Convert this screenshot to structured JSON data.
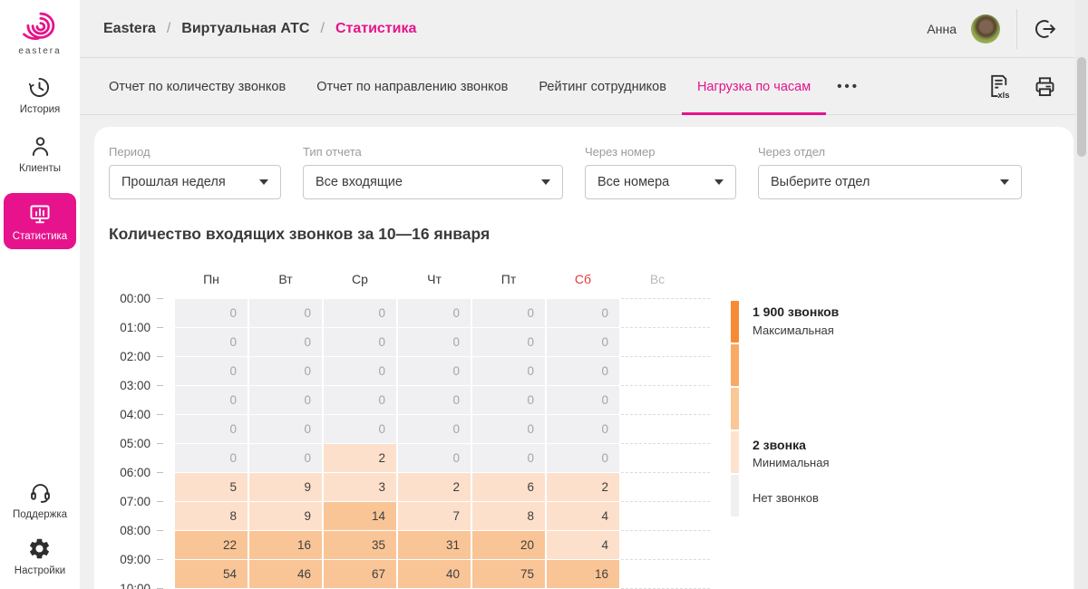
{
  "brand": {
    "name": "eastera"
  },
  "colors": {
    "accent": "#e6138c",
    "saturday": "#e53935",
    "legend": [
      "#f68b35",
      "#f9a963",
      "#fbc795",
      "#fde3cd",
      "#f0f0f2"
    ]
  },
  "topbar": {
    "breadcrumb": [
      "Eastera",
      "Виртуальная АТС",
      "Статистика"
    ],
    "separator": "/",
    "user_name": "Анна"
  },
  "sidebar": {
    "items": [
      {
        "label": "История",
        "icon": "history-icon",
        "active": false
      },
      {
        "label": "Клиенты",
        "icon": "clients-icon",
        "active": false
      },
      {
        "label": "Статистика",
        "icon": "statistics-icon",
        "active": true
      },
      {
        "label": "Поддержка",
        "icon": "support-icon",
        "active": false
      },
      {
        "label": "Настройки",
        "icon": "settings-icon",
        "active": false
      }
    ]
  },
  "tabs": {
    "items": [
      {
        "label": "Отчет по количеству звонков",
        "active": false
      },
      {
        "label": "Отчет по направлению звонков",
        "active": false
      },
      {
        "label": "Рейтинг сотрудников",
        "active": false
      },
      {
        "label": "Нагрузка по часам",
        "active": true
      }
    ],
    "more": "•••",
    "export_label": "xls"
  },
  "filters": [
    {
      "label": "Период",
      "value": "Прошлая неделя"
    },
    {
      "label": "Тип отчета",
      "value": "Все входящие"
    },
    {
      "label": "Через номер",
      "value": "Все номера"
    },
    {
      "label": "Через отдел",
      "value": "Выберите отдел"
    }
  ],
  "report": {
    "title": "Количество входящих звонков за 10—16 января"
  },
  "chart_data": {
    "type": "heatmap",
    "title": "Количество входящих звонков за 10—16 января",
    "columns": [
      "Пн",
      "Вт",
      "Ср",
      "Чт",
      "Пт",
      "Сб",
      "Вс"
    ],
    "rows": [
      "00:00",
      "01:00",
      "02:00",
      "03:00",
      "04:00",
      "05:00",
      "06:00",
      "07:00",
      "08:00",
      "09:00",
      "10:00"
    ],
    "values": [
      [
        0,
        0,
        0,
        0,
        0,
        0,
        null
      ],
      [
        0,
        0,
        0,
        0,
        0,
        0,
        null
      ],
      [
        0,
        0,
        0,
        0,
        0,
        0,
        null
      ],
      [
        0,
        0,
        0,
        0,
        0,
        0,
        null
      ],
      [
        0,
        0,
        0,
        0,
        0,
        0,
        null
      ],
      [
        0,
        0,
        2,
        0,
        0,
        0,
        null
      ],
      [
        5,
        9,
        3,
        2,
        6,
        2,
        null
      ],
      [
        8,
        9,
        14,
        7,
        8,
        4,
        null
      ],
      [
        22,
        16,
        35,
        31,
        20,
        4,
        null
      ],
      [
        54,
        46,
        67,
        40,
        75,
        16,
        null
      ],
      [
        null,
        null,
        null,
        null,
        null,
        null,
        null
      ]
    ],
    "levels": [
      [
        1,
        1,
        1,
        1,
        1,
        1,
        0
      ],
      [
        1,
        1,
        1,
        1,
        1,
        1,
        0
      ],
      [
        1,
        1,
        1,
        1,
        1,
        1,
        0
      ],
      [
        1,
        1,
        1,
        1,
        1,
        1,
        0
      ],
      [
        1,
        1,
        1,
        1,
        1,
        1,
        0
      ],
      [
        1,
        1,
        2,
        1,
        1,
        1,
        0
      ],
      [
        2,
        2,
        2,
        2,
        2,
        2,
        0
      ],
      [
        2,
        2,
        3,
        2,
        2,
        2,
        0
      ],
      [
        3,
        3,
        3,
        3,
        3,
        2,
        0
      ],
      [
        3,
        3,
        3,
        3,
        3,
        3,
        0
      ],
      [
        3,
        3,
        3,
        3,
        3,
        3,
        0
      ]
    ],
    "legend": {
      "max_value": "1 900 звонков",
      "max_caption": "Максимальная",
      "min_value": "2 звонка",
      "min_caption": "Минимальная",
      "zero_caption": "Нет звонков",
      "position": "right"
    }
  }
}
